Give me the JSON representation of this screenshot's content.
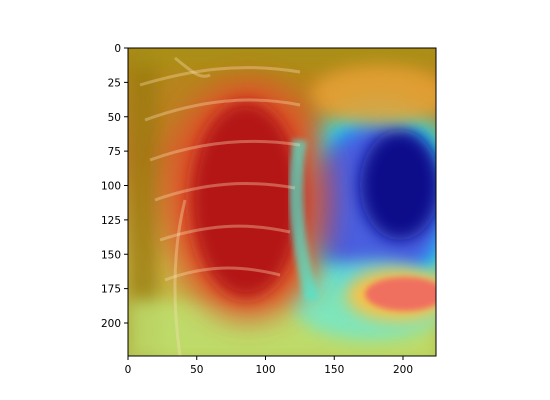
{
  "chart_data": {
    "type": "heatmap",
    "title": "",
    "xlabel": "",
    "ylabel": "",
    "xlim": [
      0,
      224
    ],
    "ylim": [
      224,
      0
    ],
    "xticks": [
      0,
      50,
      100,
      150,
      200
    ],
    "yticks": [
      0,
      25,
      50,
      75,
      100,
      125,
      150,
      175,
      200
    ],
    "xtick_labels": [
      "0",
      "50",
      "100",
      "150",
      "200"
    ],
    "ytick_labels": [
      "0",
      "25",
      "50",
      "75",
      "100",
      "125",
      "150",
      "175",
      "200"
    ],
    "grid": false,
    "colormap": "jet",
    "content": "chest X-ray with jet heatmap overlay",
    "hotspots": [
      {
        "x": 85,
        "y": 120,
        "intensity": 0.95
      },
      {
        "x": 195,
        "y": 178,
        "intensity": 0.85
      },
      {
        "x": 190,
        "y": 100,
        "intensity": 0.02
      },
      {
        "x": 165,
        "y": 215,
        "intensity": 0.4
      }
    ]
  }
}
